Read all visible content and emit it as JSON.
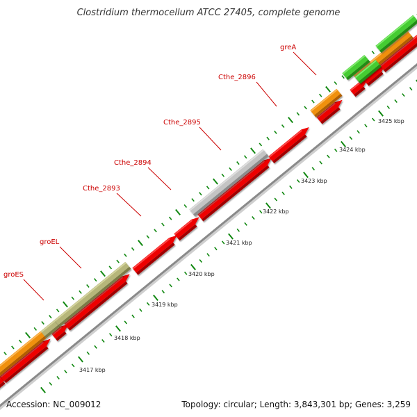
{
  "header": {
    "title": "Clostridium thermocellum ATCC 27405, complete genome"
  },
  "footer": {
    "accession": "Accession: NC_009012",
    "summary": "Topology: circular; Length: 3,843,301 bp; Genes: 3,259"
  },
  "scale_labels": [
    "3417 kbp",
    "3418 kbp",
    "3419 kbp",
    "3420 kbp",
    "3421 kbp",
    "3422 kbp",
    "3423 kbp",
    "3424 kbp",
    "3425 kbp"
  ],
  "gene_labels": [
    "groES",
    "groEL",
    "Cthe_2893",
    "Cthe_2894",
    "Cthe_2895",
    "Cthe_2896",
    "greA"
  ],
  "colors": {
    "cds": "#ee0000",
    "cds_highlight": "#ff5a5a",
    "cds_dark": "#a00000",
    "olive": "#b6b67a",
    "gray": "#c4c4c4",
    "orange": "#f0900e",
    "green": "#44cc33",
    "backbone": "#888888",
    "tick_green": "#118811",
    "label_red": "#cc0000"
  }
}
